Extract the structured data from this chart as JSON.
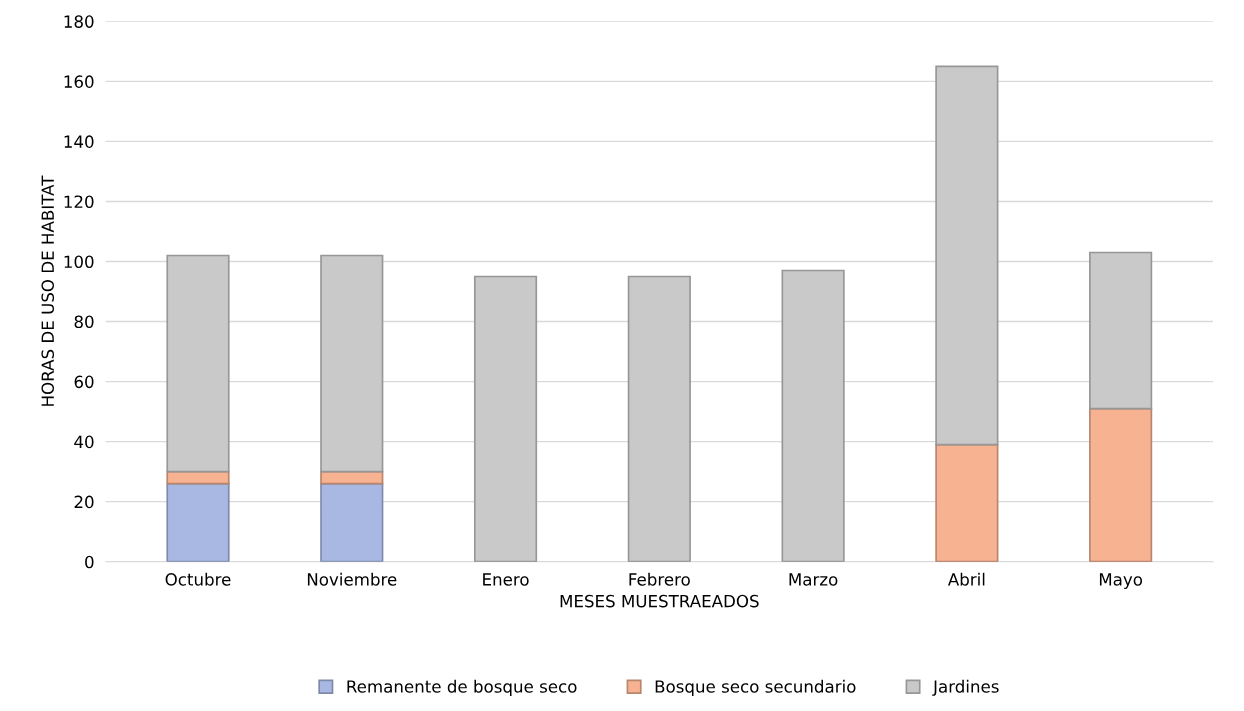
{
  "chart_data": {
    "type": "bar",
    "stacked": true,
    "xlabel": "MESES MUESTRAEADOS",
    "ylabel": "HORAS DE USO DE HABITAT",
    "categories": [
      "Octubre",
      "Noviembre",
      "Enero",
      "Febrero",
      "Marzo",
      "Abril",
      "Mayo"
    ],
    "series": [
      {
        "name": "Remanente de bosque seco",
        "color": "#a9b8e2",
        "values": [
          26,
          26,
          0,
          0,
          0,
          0,
          0
        ]
      },
      {
        "name": "Bosque seco secundario",
        "color": "#f6b291",
        "values": [
          4,
          4,
          0,
          0,
          0,
          39,
          51
        ]
      },
      {
        "name": "Jardines",
        "color": "#c9c9c9",
        "values": [
          72,
          72,
          95,
          95,
          97,
          126,
          52
        ]
      }
    ],
    "ylim": [
      0,
      180
    ],
    "yticks": [
      0,
      20,
      40,
      60,
      80,
      100,
      120,
      140,
      160,
      180
    ],
    "grid": "y",
    "legend": "bottom"
  }
}
